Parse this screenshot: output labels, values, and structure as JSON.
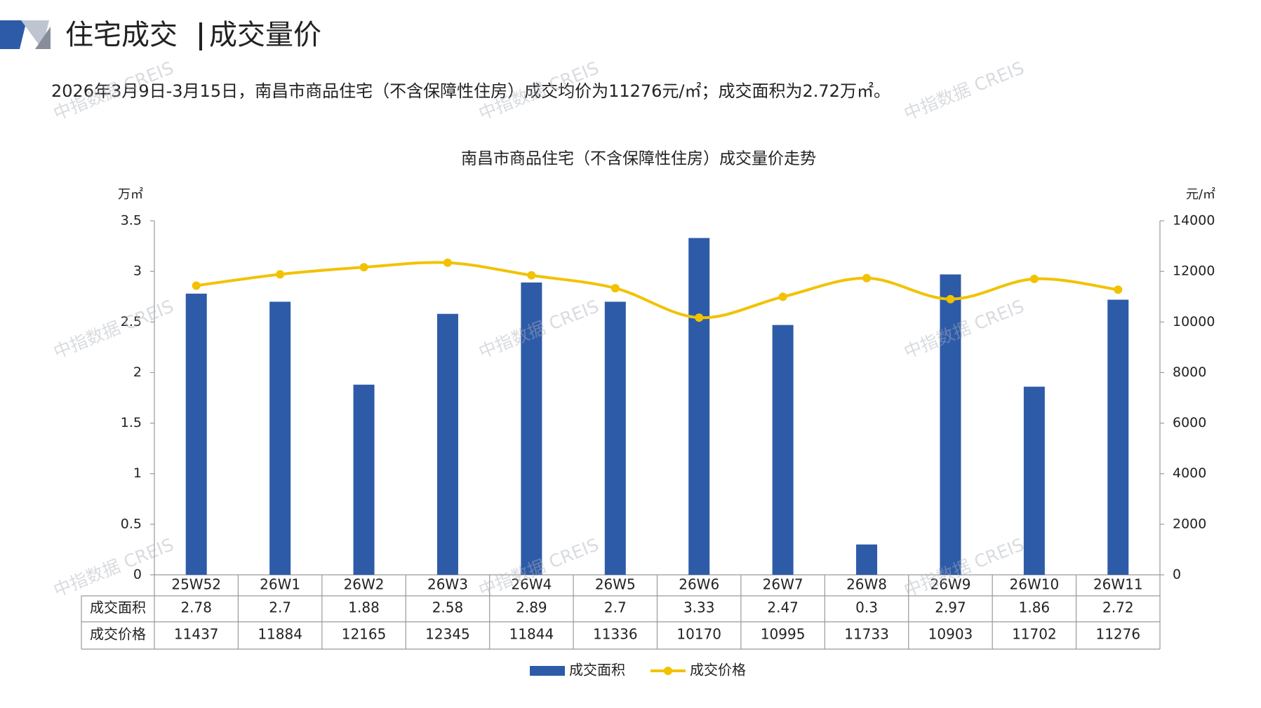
{
  "header": {
    "title": "住宅成交",
    "subtitle": "成交量价"
  },
  "summary": "2026年3月9日-3月15日，南昌市商品住宅（不含保障性住房）成交均价为11276元/㎡；成交面积为2.72万㎡。",
  "watermark": "中指数据 CREIS",
  "chart_data": {
    "type": "bar",
    "title": "南昌市商品住宅（不含保障性住房）成交量价走势",
    "y_label": "万㎡",
    "y2_label": "元/㎡",
    "categories": [
      "25W52",
      "26W1",
      "26W2",
      "26W3",
      "26W4",
      "26W5",
      "26W6",
      "26W7",
      "26W8",
      "26W9",
      "26W10",
      "26W11"
    ],
    "series": [
      {
        "name": "成交面积",
        "type": "bar",
        "color": "#2e5ba8",
        "values": [
          2.78,
          2.7,
          1.88,
          2.58,
          2.89,
          2.7,
          3.33,
          2.47,
          0.3,
          2.97,
          1.86,
          2.72
        ]
      },
      {
        "name": "成交价格",
        "type": "line",
        "axis": "y2",
        "color": "#f2c200",
        "values": [
          11437,
          11884,
          12165,
          12345,
          11844,
          11336,
          10170,
          10995,
          11733,
          10903,
          11702,
          11276
        ]
      }
    ],
    "ylim": [
      0,
      3.5
    ],
    "yticks": [
      0,
      0.5,
      1,
      1.5,
      2,
      2.5,
      3,
      3.5
    ],
    "y2lim": [
      0,
      14000
    ],
    "y2ticks": [
      0,
      2000,
      4000,
      6000,
      8000,
      10000,
      12000,
      14000
    ],
    "grid": false,
    "legend": "bottom"
  }
}
